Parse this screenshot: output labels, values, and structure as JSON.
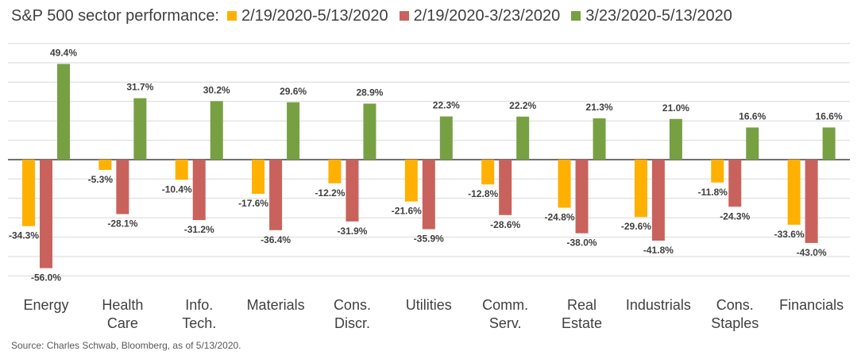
{
  "header": {
    "title": "S&P 500 sector  performance:"
  },
  "source": "Source: Charles Schwab, Bloomberg, as of 5/13/2020.",
  "chart_data": {
    "type": "bar",
    "title": "S&P 500 sector  performance:",
    "categories": [
      [
        "Energy"
      ],
      [
        "Health",
        "Care"
      ],
      [
        "Info.",
        "Tech."
      ],
      [
        "Materials"
      ],
      [
        "Cons.",
        "Discr."
      ],
      [
        "Utilities"
      ],
      [
        "Comm.",
        "Serv."
      ],
      [
        "Real",
        "Estate"
      ],
      [
        "Industrials"
      ],
      [
        "Cons.",
        "Staples"
      ],
      [
        "Financials"
      ]
    ],
    "series": [
      {
        "name": "2/19/2020-5/13/2020",
        "color": "#FFB000",
        "values": [
          -34.3,
          -5.3,
          -10.4,
          -17.6,
          -12.2,
          -21.6,
          -12.8,
          -24.8,
          -29.6,
          -11.8,
          -33.6
        ],
        "labels": [
          "-34.3%",
          "-5.3%",
          "-10.4%",
          "-17.6%",
          "-12.2%",
          "-21.6%",
          "-12.8%",
          "-24.8%",
          "-29.6%",
          "-11.8%",
          "-33.6%"
        ]
      },
      {
        "name": "2/19/2020-3/23/2020",
        "color": "#C9625C",
        "values": [
          -56.0,
          -28.1,
          -31.2,
          -36.4,
          -31.9,
          -35.9,
          -28.6,
          -38.0,
          -41.8,
          -24.3,
          -43.0
        ],
        "labels": [
          "-56.0%",
          "-28.1%",
          "-31.2%",
          "-36.4%",
          "-31.9%",
          "-35.9%",
          "-28.6%",
          "-38.0%",
          "-41.8%",
          "-24.3%",
          "-43.0%"
        ]
      },
      {
        "name": "3/23/2020-5/13/2020",
        "color": "#77A043",
        "values": [
          49.4,
          31.7,
          30.2,
          29.6,
          28.9,
          22.3,
          22.2,
          21.3,
          21.0,
          16.6,
          16.6
        ],
        "labels": [
          "49.4%",
          "31.7%",
          "30.2%",
          "29.6%",
          "28.9%",
          "22.3%",
          "22.2%",
          "21.3%",
          "21.0%",
          "16.6%",
          "16.6%"
        ]
      }
    ],
    "ylim": [
      -65,
      65
    ],
    "grid": true,
    "legend_position": "top"
  }
}
